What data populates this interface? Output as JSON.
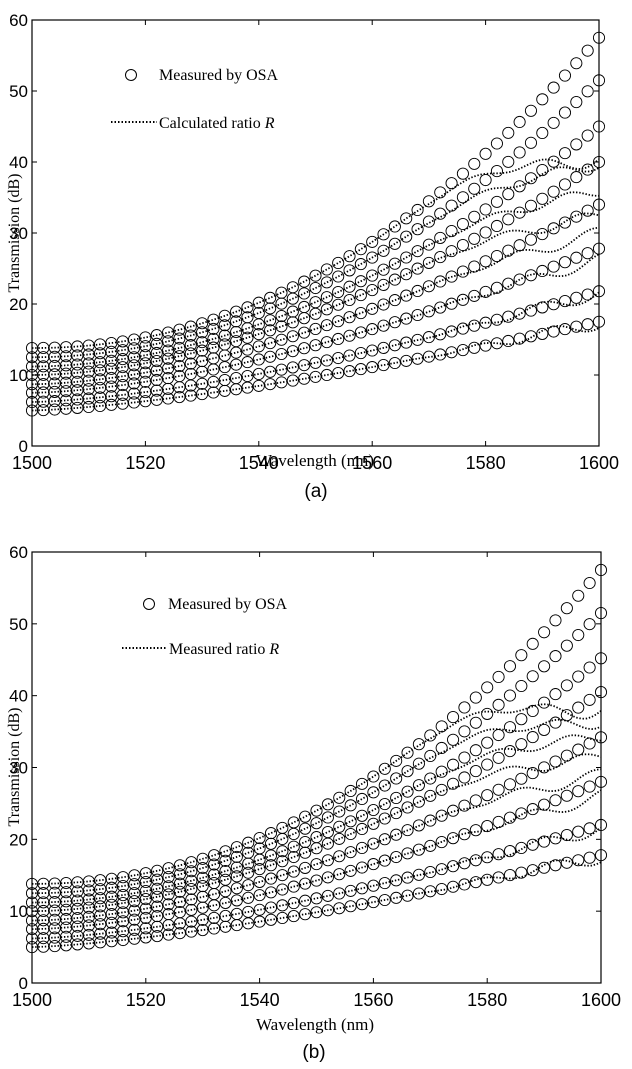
{
  "chart_data": [
    {
      "type": "scatter",
      "panel_label": "(a)",
      "xlabel": "Wavelength (nm)",
      "ylabel": "Transmission (dB)",
      "xlim": [
        1500,
        1600
      ],
      "ylim": [
        0,
        60
      ],
      "x_ticks": [
        "1500",
        "1520",
        "1540",
        "1560",
        "1580",
        "1600"
      ],
      "y_ticks": [
        "0",
        "10",
        "20",
        "30",
        "40",
        "50",
        "60"
      ],
      "grid": false,
      "legend_position": "top-left",
      "legend": [
        {
          "marker": "circle",
          "label": "Measured by OSA"
        },
        {
          "marker": "dotted-line",
          "label": "Calculated ratio ",
          "italic_suffix": "R"
        }
      ],
      "x_step_nm": 2,
      "series": [
        {
          "role": "Measured by OSA",
          "y_start": 5.0,
          "y_end": 17.5,
          "curvature": 1.4
        },
        {
          "role": "Measured by OSA",
          "y_start": 6.2,
          "y_end": 21.8,
          "curvature": 1.5
        },
        {
          "role": "Measured by OSA",
          "y_start": 7.5,
          "y_end": 27.8,
          "curvature": 1.6
        },
        {
          "role": "Measured by OSA",
          "y_start": 8.7,
          "y_end": 34.0,
          "curvature": 1.7
        },
        {
          "role": "Measured by OSA",
          "y_start": 10.0,
          "y_end": 40.0,
          "curvature": 1.8
        },
        {
          "role": "Measured by OSA",
          "y_start": 11.2,
          "y_end": 45.0,
          "curvature": 1.9
        },
        {
          "role": "Measured by OSA",
          "y_start": 12.5,
          "y_end": 51.5,
          "curvature": 2.0
        },
        {
          "role": "Measured by OSA",
          "y_start": 13.8,
          "y_end": 57.5,
          "curvature": 2.1
        }
      ],
      "ratio_curves": [
        {
          "role": "Calculated ratio R",
          "follows_series": 0,
          "end_y": 17.3
        },
        {
          "role": "Calculated ratio R",
          "follows_series": 1,
          "end_y": 21.5
        },
        {
          "role": "Calculated ratio R",
          "follows_series": 2,
          "end_y": 26.2
        },
        {
          "role": "Calculated ratio R",
          "follows_series": 3,
          "end_y": 30.0
        },
        {
          "role": "Calculated ratio R",
          "follows_series": 4,
          "end_y": 32.5
        },
        {
          "role": "Calculated ratio R",
          "follows_series": 5,
          "end_y": 36.0
        },
        {
          "role": "Calculated ratio R",
          "follows_series": 6,
          "end_y": 40.0
        },
        {
          "role": "Calculated ratio R",
          "follows_series": 7,
          "end_y": 40.5
        }
      ]
    },
    {
      "type": "scatter",
      "panel_label": "(b)",
      "xlabel": "Wavelength (nm)",
      "ylabel": "Transmission (dB)",
      "xlim": [
        1500,
        1600
      ],
      "ylim": [
        0,
        60
      ],
      "x_ticks": [
        "1500",
        "1520",
        "1540",
        "1560",
        "1580",
        "1600"
      ],
      "y_ticks": [
        "0",
        "10",
        "20",
        "30",
        "40",
        "50",
        "60"
      ],
      "grid": false,
      "legend_position": "top-left",
      "legend": [
        {
          "marker": "circle",
          "label": "Measured by OSA"
        },
        {
          "marker": "dotted-line",
          "label": "Measured ratio ",
          "italic_suffix": "R"
        }
      ],
      "x_step_nm": 2,
      "series": [
        {
          "role": "Measured by OSA",
          "y_start": 5.0,
          "y_end": 17.8,
          "curvature": 1.4
        },
        {
          "role": "Measured by OSA",
          "y_start": 6.2,
          "y_end": 22.0,
          "curvature": 1.5
        },
        {
          "role": "Measured by OSA",
          "y_start": 7.5,
          "y_end": 28.0,
          "curvature": 1.6
        },
        {
          "role": "Measured by OSA",
          "y_start": 8.7,
          "y_end": 34.2,
          "curvature": 1.7
        },
        {
          "role": "Measured by OSA",
          "y_start": 10.0,
          "y_end": 40.5,
          "curvature": 1.8
        },
        {
          "role": "Measured by OSA",
          "y_start": 11.2,
          "y_end": 45.2,
          "curvature": 1.9
        },
        {
          "role": "Measured by OSA",
          "y_start": 12.5,
          "y_end": 51.5,
          "curvature": 2.0
        },
        {
          "role": "Measured by OSA",
          "y_start": 13.8,
          "y_end": 57.5,
          "curvature": 2.1
        }
      ],
      "ratio_curves": [
        {
          "role": "Measured ratio R",
          "follows_series": 0,
          "end_y": 17.5
        },
        {
          "role": "Measured ratio R",
          "follows_series": 1,
          "end_y": 21.5
        },
        {
          "role": "Measured ratio R",
          "follows_series": 2,
          "end_y": 26.0
        },
        {
          "role": "Measured ratio R",
          "follows_series": 3,
          "end_y": 29.0
        },
        {
          "role": "Measured ratio R",
          "follows_series": 4,
          "end_y": 31.5
        },
        {
          "role": "Measured ratio R",
          "follows_series": 5,
          "end_y": 34.5
        },
        {
          "role": "Measured ratio R",
          "follows_series": 6,
          "end_y": 36.5
        },
        {
          "role": "Measured ratio R",
          "follows_series": 7,
          "end_y": 38.0
        }
      ]
    }
  ]
}
